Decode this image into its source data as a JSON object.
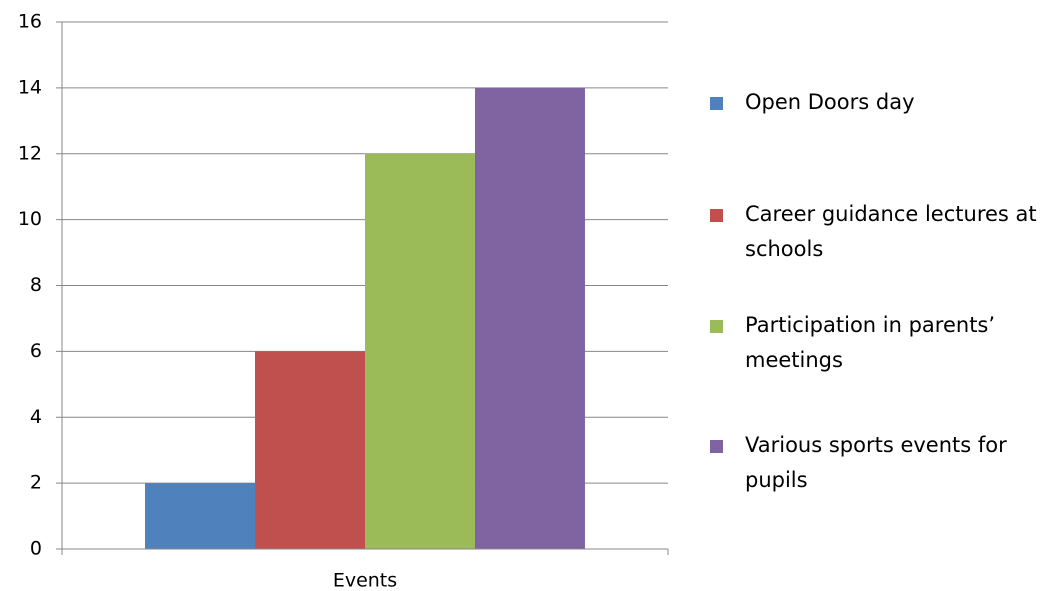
{
  "chart_data": {
    "type": "bar",
    "categories": [
      "Events"
    ],
    "series": [
      {
        "name": "Open Doors day",
        "color": "#4f81bd",
        "values": [
          2
        ]
      },
      {
        "name": "Career guidance lectures at schools",
        "color": "#c0504d",
        "values": [
          6
        ]
      },
      {
        "name": "Participation in parents’ meetings",
        "color": "#9bbb59",
        "values": [
          12
        ]
      },
      {
        "name": "Various sports events for pupils",
        "color": "#8064a2",
        "values": [
          14
        ]
      }
    ],
    "ylim": [
      0,
      16
    ],
    "yticks": [
      0,
      2,
      4,
      6,
      8,
      10,
      12,
      14,
      16
    ],
    "grid": true,
    "legend": "right"
  }
}
